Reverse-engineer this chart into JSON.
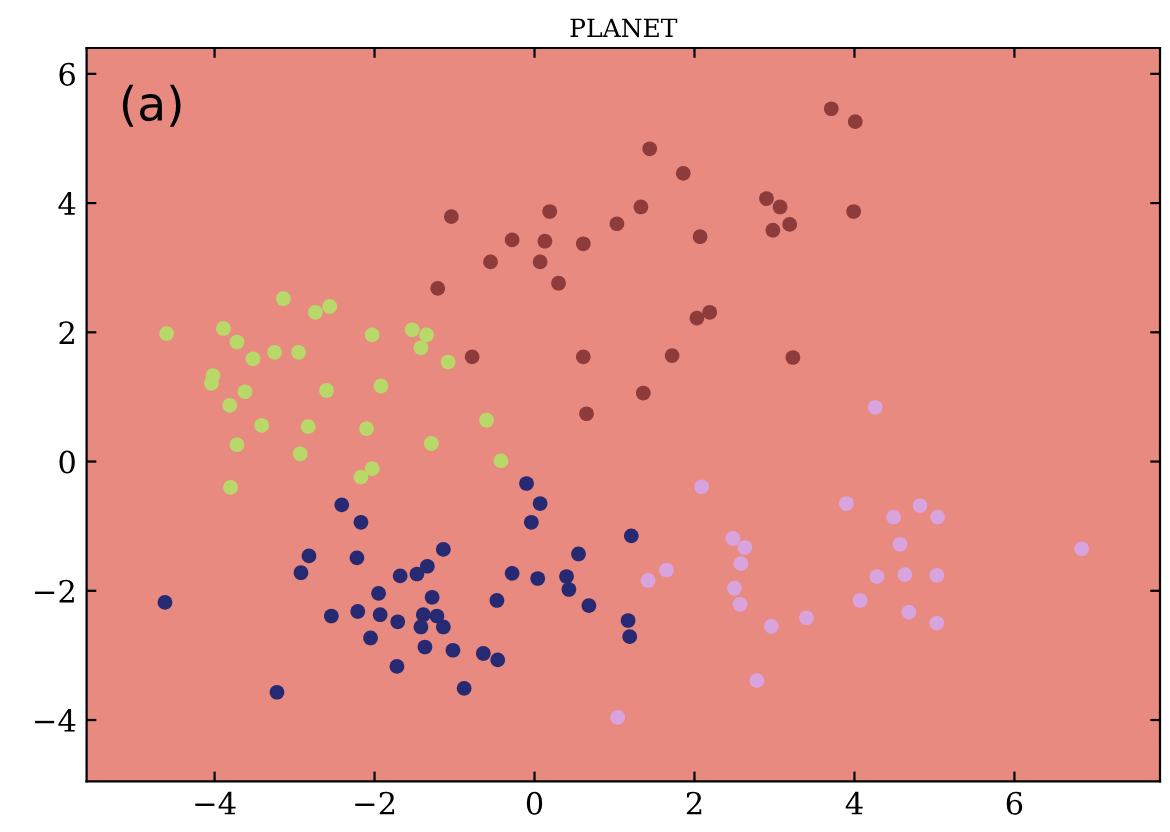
{
  "chart_data": {
    "type": "scatter",
    "title": "PLANET",
    "annotations": [
      "(a)"
    ],
    "xlim": [
      -5.6,
      7.82
    ],
    "ylim": [
      -4.95,
      6.4
    ],
    "xticks": [
      {
        "value": -4,
        "label": "−4"
      },
      {
        "value": -2,
        "label": "−2"
      },
      0,
      2,
      4,
      6
    ],
    "yticks": [
      {
        "value": -4,
        "label": "−4"
      },
      {
        "value": -2,
        "label": "−2"
      },
      0,
      2,
      4,
      6
    ],
    "grid": false,
    "marker": "circle",
    "series": [
      {
        "color": "#b8d86a",
        "x": [
          -4.6,
          -3.89,
          -3.72,
          -3.14,
          -2.74,
          -2.56,
          -3.52,
          -3.25,
          -2.95,
          -4.02,
          -4.04,
          -3.62,
          -3.81,
          -2.6,
          -1.92,
          -2.03,
          -1.53,
          -1.35,
          -1.42,
          -1.08,
          -3.41,
          -2.83,
          -2.1,
          -0.6,
          -3.72,
          -2.93,
          -2.03,
          -2.17,
          -3.8,
          -1.29,
          -0.42
        ],
        "values": [
          1.98,
          2.06,
          1.85,
          2.52,
          2.31,
          2.4,
          1.59,
          1.69,
          1.69,
          1.33,
          1.21,
          1.08,
          0.87,
          1.1,
          1.17,
          1.96,
          2.04,
          1.96,
          1.76,
          1.54,
          0.56,
          0.54,
          0.51,
          0.64,
          0.26,
          0.12,
          -0.11,
          -0.24,
          -0.4,
          0.28,
          0.01
        ]
      },
      {
        "color": "#8e3b3b",
        "x": [
          -1.04,
          0.19,
          -0.28,
          0.13,
          -0.55,
          0.07,
          0.61,
          0.3,
          -1.21,
          1.03,
          -0.78,
          0.61,
          0.65,
          3.71,
          4.01,
          1.44,
          1.86,
          1.33,
          2.07,
          2.9,
          3.07,
          3.19,
          2.98,
          3.99,
          2.03,
          2.19,
          3.23,
          1.72,
          1.36
        ],
        "values": [
          3.79,
          3.87,
          3.43,
          3.41,
          3.09,
          3.09,
          3.37,
          2.76,
          2.68,
          3.68,
          1.62,
          1.62,
          0.74,
          5.46,
          5.26,
          4.84,
          4.46,
          3.94,
          3.48,
          4.07,
          3.94,
          3.67,
          3.58,
          3.87,
          2.22,
          2.31,
          1.61,
          1.64,
          1.06
        ]
      },
      {
        "color": "#272a72",
        "x": [
          -4.62,
          -3.22,
          -2.41,
          -2.17,
          -2.82,
          -2.92,
          -2.22,
          -1.14,
          -1.34,
          -1.47,
          -1.68,
          -1.95,
          -1.28,
          -2.54,
          -2.21,
          -1.93,
          -1.71,
          -1.39,
          -1.22,
          -1.42,
          -1.14,
          -2.05,
          -1.37,
          -1.02,
          -0.64,
          -0.46,
          -1.72,
          -0.88,
          -0.47,
          -0.28,
          0.04,
          -0.1,
          0.07,
          -0.04,
          0.55,
          0.4,
          0.43,
          0.68,
          1.21,
          1.17,
          1.19
        ],
        "values": [
          -2.18,
          -3.57,
          -0.67,
          -0.94,
          -1.46,
          -1.72,
          -1.49,
          -1.36,
          -1.62,
          -1.74,
          -1.77,
          -2.04,
          -2.1,
          -2.39,
          -2.32,
          -2.37,
          -2.48,
          -2.37,
          -2.39,
          -2.56,
          -2.56,
          -2.73,
          -2.87,
          -2.92,
          -2.97,
          -3.07,
          -3.17,
          -3.51,
          -2.15,
          -1.73,
          -1.81,
          -0.34,
          -0.65,
          -0.94,
          -1.43,
          -1.78,
          -1.98,
          -2.23,
          -1.15,
          -2.46,
          -2.71
        ]
      },
      {
        "color": "#d9a3de",
        "x": [
          4.26,
          2.09,
          3.9,
          4.82,
          5.04,
          4.49,
          4.57,
          2.48,
          2.63,
          2.58,
          1.65,
          1.42,
          2.5,
          2.57,
          4.28,
          4.63,
          5.03,
          4.07,
          4.68,
          5.03,
          3.4,
          2.96,
          6.84,
          2.78,
          1.04
        ],
        "values": [
          0.84,
          -0.39,
          -0.65,
          -0.68,
          -0.86,
          -0.86,
          -1.28,
          -1.19,
          -1.33,
          -1.58,
          -1.68,
          -1.84,
          -1.96,
          -2.21,
          -1.78,
          -1.75,
          -1.76,
          -2.15,
          -2.33,
          -2.5,
          -2.42,
          -2.55,
          -1.35,
          -3.39,
          -3.96
        ]
      }
    ]
  }
}
